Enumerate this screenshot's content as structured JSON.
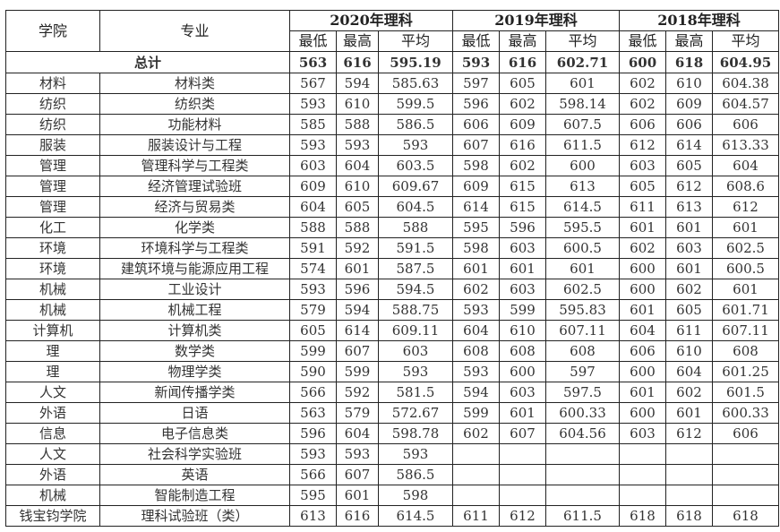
{
  "headers": {
    "college": "学院",
    "major": "专业",
    "years": [
      "2020年理科",
      "2019年理科",
      "2018年理科"
    ],
    "sub": [
      "最低",
      "最高",
      "平均"
    ]
  },
  "total": {
    "label": "总计",
    "values": [
      "563",
      "616",
      "595.19",
      "593",
      "616",
      "602.71",
      "600",
      "618",
      "604.95"
    ]
  },
  "rows": [
    {
      "college": "材料",
      "major": "材料类",
      "values": [
        "567",
        "594",
        "585.63",
        "597",
        "605",
        "601",
        "602",
        "610",
        "604.38"
      ]
    },
    {
      "college": "纺织",
      "major": "纺织类",
      "values": [
        "593",
        "610",
        "599.5",
        "596",
        "602",
        "598.14",
        "602",
        "609",
        "604.57"
      ]
    },
    {
      "college": "纺织",
      "major": "功能材料",
      "values": [
        "585",
        "588",
        "586.5",
        "606",
        "609",
        "607.5",
        "606",
        "606",
        "606"
      ]
    },
    {
      "college": "服装",
      "major": "服装设计与工程",
      "values": [
        "593",
        "593",
        "593",
        "607",
        "616",
        "611.5",
        "612",
        "614",
        "613.33"
      ]
    },
    {
      "college": "管理",
      "major": "管理科学与工程类",
      "values": [
        "603",
        "604",
        "603.5",
        "598",
        "602",
        "600",
        "603",
        "605",
        "604"
      ]
    },
    {
      "college": "管理",
      "major": "经济管理试验班",
      "values": [
        "609",
        "610",
        "609.67",
        "609",
        "615",
        "613",
        "605",
        "612",
        "608.6"
      ]
    },
    {
      "college": "管理",
      "major": "经济与贸易类",
      "values": [
        "604",
        "605",
        "604.5",
        "614",
        "615",
        "614.5",
        "611",
        "613",
        "612"
      ]
    },
    {
      "college": "化工",
      "major": "化学类",
      "values": [
        "588",
        "588",
        "588",
        "595",
        "596",
        "595.5",
        "601",
        "601",
        "601"
      ]
    },
    {
      "college": "环境",
      "major": "环境科学与工程类",
      "values": [
        "591",
        "592",
        "591.5",
        "598",
        "603",
        "600.5",
        "602",
        "603",
        "602.5"
      ]
    },
    {
      "college": "环境",
      "major": "建筑环境与能源应用工程",
      "values": [
        "574",
        "601",
        "587.5",
        "601",
        "601",
        "601",
        "600",
        "601",
        "600.5"
      ]
    },
    {
      "college": "机械",
      "major": "工业设计",
      "values": [
        "593",
        "596",
        "594.5",
        "602",
        "603",
        "602.5",
        "600",
        "602",
        "601"
      ]
    },
    {
      "college": "机械",
      "major": "机械工程",
      "values": [
        "579",
        "594",
        "588.75",
        "593",
        "599",
        "595.83",
        "601",
        "605",
        "601.71"
      ]
    },
    {
      "college": "计算机",
      "major": "计算机类",
      "values": [
        "605",
        "614",
        "609.11",
        "604",
        "610",
        "607.11",
        "604",
        "611",
        "607.11"
      ]
    },
    {
      "college": "理",
      "major": "数学类",
      "values": [
        "599",
        "607",
        "603",
        "608",
        "608",
        "608",
        "606",
        "610",
        "608"
      ]
    },
    {
      "college": "理",
      "major": "物理学类",
      "values": [
        "590",
        "599",
        "593",
        "593",
        "600",
        "597",
        "600",
        "604",
        "601.25"
      ]
    },
    {
      "college": "人文",
      "major": "新闻传播学类",
      "values": [
        "566",
        "592",
        "581.5",
        "594",
        "603",
        "597.5",
        "601",
        "602",
        "601.5"
      ]
    },
    {
      "college": "外语",
      "major": "日语",
      "values": [
        "563",
        "579",
        "572.67",
        "599",
        "601",
        "600.33",
        "600",
        "601",
        "600.33"
      ]
    },
    {
      "college": "信息",
      "major": "电子信息类",
      "values": [
        "596",
        "604",
        "598.78",
        "602",
        "607",
        "604.56",
        "603",
        "612",
        "606"
      ]
    },
    {
      "college": "人文",
      "major": "社会科学实验班",
      "values": [
        "593",
        "593",
        "593",
        "",
        "",
        "",
        "",
        "",
        ""
      ]
    },
    {
      "college": "外语",
      "major": "英语",
      "values": [
        "566",
        "607",
        "586.5",
        "",
        "",
        "",
        "",
        "",
        ""
      ]
    },
    {
      "college": "机械",
      "major": "智能制造工程",
      "values": [
        "595",
        "601",
        "598",
        "",
        "",
        "",
        "",
        "",
        ""
      ]
    },
    {
      "college": "钱宝钧学院",
      "major": "理科试验班（类）",
      "values": [
        "613",
        "616",
        "614.5",
        "611",
        "612",
        "611.5",
        "618",
        "618",
        "618"
      ]
    }
  ]
}
